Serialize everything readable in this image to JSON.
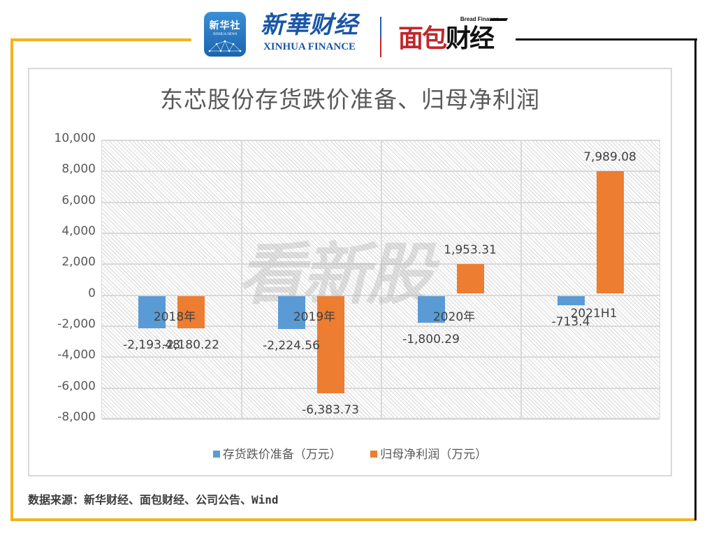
{
  "header": {
    "logo_xinhua_news": {
      "cn": "新华社",
      "en": "XINHUA NEWS"
    },
    "logo_xinhua_finance": {
      "cn": "新華财经",
      "en": "XINHUA FINANCE"
    },
    "logo_bread_finance": {
      "en": "Bread Finance",
      "cn_red": "面包",
      "cn_black": "财经"
    }
  },
  "colors": {
    "frame_gold": "#f0b41e",
    "frame_black": "#111111",
    "series_blue": "#5b9bd5",
    "series_orange": "#ed7d31"
  },
  "chart_data": {
    "type": "bar",
    "title": "东芯股份存货跌价准备、归母净利润",
    "xlabel": "",
    "ylabel": "",
    "categories": [
      "2018年",
      "2019年",
      "2020年",
      "2021H1"
    ],
    "series": [
      {
        "name": "存货跌价准备（万元）",
        "color": "#5b9bd5",
        "values": [
          -2193.48,
          -2224.56,
          -1800.29,
          -713.4
        ]
      },
      {
        "name": "归母净利润（万元）",
        "color": "#ed7d31",
        "values": [
          -2180.22,
          -6383.73,
          1953.31,
          7989.08
        ]
      }
    ],
    "data_labels": {
      "series_0": [
        "-2,193.48",
        "-2,224.56",
        "-1,800.29",
        "-713.4"
      ],
      "series_1": [
        "-2,180.22",
        "-6,383.73",
        "1,953.31",
        "7,989.08"
      ]
    },
    "ylim": [
      -8000,
      10000
    ],
    "y_ticks": [
      10000,
      8000,
      6000,
      4000,
      2000,
      0,
      -2000,
      -4000,
      -6000,
      -8000
    ],
    "y_tick_labels": [
      "10,000",
      "8,000",
      "6,000",
      "4,000",
      "2,000",
      "0",
      "-2,000",
      "-4,000",
      "-6,000",
      "-8,000"
    ],
    "grid": true,
    "legend_position": "bottom"
  },
  "watermark": "看新股",
  "source": "数据来源：新华财经、面包财经、公司公告、Wind"
}
